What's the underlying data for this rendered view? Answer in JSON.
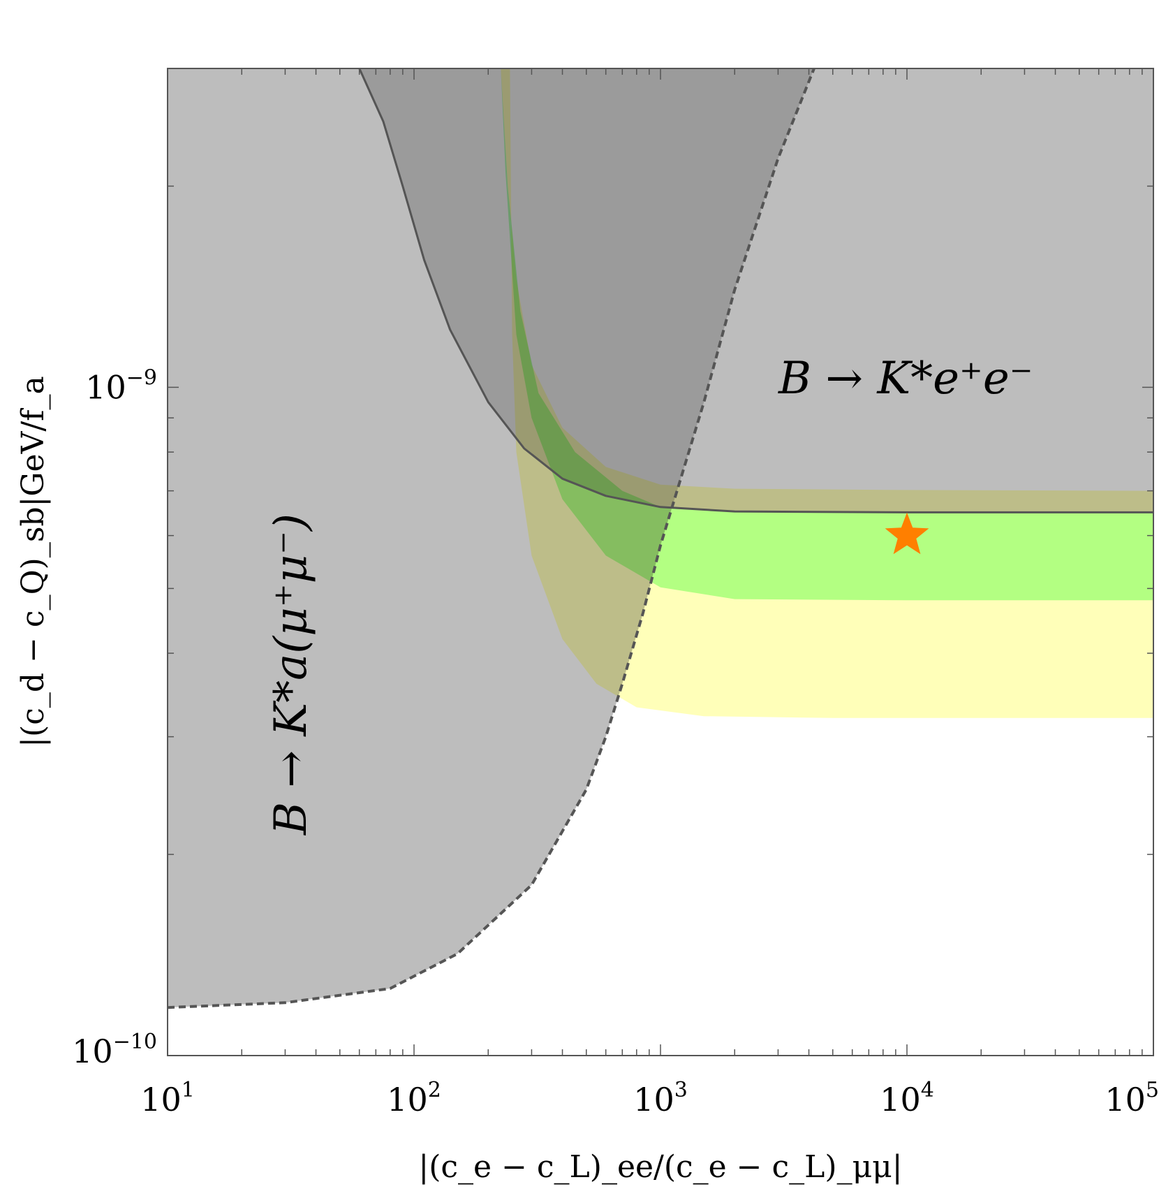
{
  "chart_data": {
    "type": "area",
    "title": "",
    "x_scale": "log",
    "y_scale": "log",
    "xlim": [
      10,
      100000
    ],
    "ylim": [
      1e-10,
      3e-09
    ],
    "xlabel": "|(c_e − c_L)_ee/(c_e − c_L)_μμ|",
    "ylabel": "|(c_d − c_Q)_sb|GeV/f_a",
    "grid": false,
    "legend": "none",
    "x_ticks": [
      {
        "value": 10,
        "base": "10",
        "exp": "1"
      },
      {
        "value": 100,
        "base": "10",
        "exp": "2"
      },
      {
        "value": 1000,
        "base": "10",
        "exp": "3"
      },
      {
        "value": 10000,
        "base": "10",
        "exp": "4"
      },
      {
        "value": 100000,
        "base": "10",
        "exp": "5"
      }
    ],
    "y_ticks": [
      {
        "value": 1e-09,
        "base": "10",
        "exp": "−9"
      },
      {
        "value": 1e-10,
        "base": "10",
        "exp": "−10"
      }
    ],
    "annotations": {
      "electron_region": "B → K*e⁺e⁻",
      "muon_region": "B → K*a(μ⁺μ⁻)"
    },
    "colors": {
      "excluded": "#bdbdbd",
      "overlap": "#9b9b9b",
      "band_2sigma": "#ffff80",
      "band_1sigma": "#80ff80",
      "boundary_line": "#555555",
      "star": "#ff7f00"
    },
    "series": [
      {
        "name": "",
        "kind": "excluded_upper_solid",
        "boundary": [
          [
            60,
            3e-09
          ],
          [
            75,
            2.5e-09
          ],
          [
            90,
            2e-09
          ],
          [
            110,
            1.55e-09
          ],
          [
            140,
            1.22e-09
          ],
          [
            200,
            9.5e-10
          ],
          [
            280,
            8.1e-10
          ],
          [
            400,
            7.3e-10
          ],
          [
            600,
            6.88e-10
          ],
          [
            1000,
            6.62e-10
          ],
          [
            2000,
            6.52e-10
          ],
          [
            10000,
            6.5e-10
          ],
          [
            100000,
            6.5e-10
          ]
        ]
      },
      {
        "name": "",
        "kind": "excluded_left_dashed",
        "boundary": [
          [
            10,
            1.18e-10
          ],
          [
            30,
            1.2e-10
          ],
          [
            80,
            1.26e-10
          ],
          [
            150,
            1.42e-10
          ],
          [
            300,
            1.8e-10
          ],
          [
            500,
            2.5e-10
          ],
          [
            600,
            3e-10
          ],
          [
            700,
            3.6e-10
          ],
          [
            850,
            4.6e-10
          ],
          [
            1000,
            5.8e-10
          ],
          [
            1500,
            9.5e-10
          ],
          [
            2000,
            1.4e-09
          ],
          [
            3000,
            2.2e-09
          ],
          [
            4200,
            3e-09
          ]
        ]
      },
      {
        "name": "",
        "kind": "band_2sigma",
        "upper": [
          [
            225,
            3e-09
          ],
          [
            240,
            2e-09
          ],
          [
            260,
            1.45e-09
          ],
          [
            300,
            1.08e-09
          ],
          [
            400,
            8.7e-10
          ],
          [
            600,
            7.6e-10
          ],
          [
            1000,
            7.15e-10
          ],
          [
            2000,
            7.05e-10
          ],
          [
            10000,
            7.02e-10
          ],
          [
            100000,
            7e-10
          ]
        ],
        "lower": [
          [
            245,
            3e-09
          ],
          [
            250,
            1.2e-09
          ],
          [
            260,
            8e-10
          ],
          [
            300,
            5.6e-10
          ],
          [
            400,
            4.2e-10
          ],
          [
            550,
            3.6e-10
          ],
          [
            800,
            3.32e-10
          ],
          [
            1500,
            3.22e-10
          ],
          [
            5000,
            3.2e-10
          ],
          [
            100000,
            3.2e-10
          ]
        ]
      },
      {
        "name": "",
        "kind": "band_1sigma",
        "upper": [
          [
            225,
            3e-09
          ],
          [
            240,
            2e-09
          ],
          [
            270,
            1.3e-09
          ],
          [
            320,
            9.8e-10
          ],
          [
            450,
            8e-10
          ],
          [
            700,
            7e-10
          ],
          [
            1000,
            6.62e-10
          ],
          [
            2000,
            6.52e-10
          ],
          [
            100000,
            6.5e-10
          ]
        ],
        "lower": [
          [
            225,
            3e-09
          ],
          [
            235,
            2.1e-09
          ],
          [
            260,
            1.2e-09
          ],
          [
            300,
            9e-10
          ],
          [
            400,
            6.8e-10
          ],
          [
            600,
            5.6e-10
          ],
          [
            1000,
            5.02e-10
          ],
          [
            2000,
            4.82e-10
          ],
          [
            10000,
            4.8e-10
          ],
          [
            100000,
            4.8e-10
          ]
        ]
      }
    ],
    "best_fit_point": {
      "x": 10000,
      "y": 6e-10,
      "marker": "star"
    }
  }
}
